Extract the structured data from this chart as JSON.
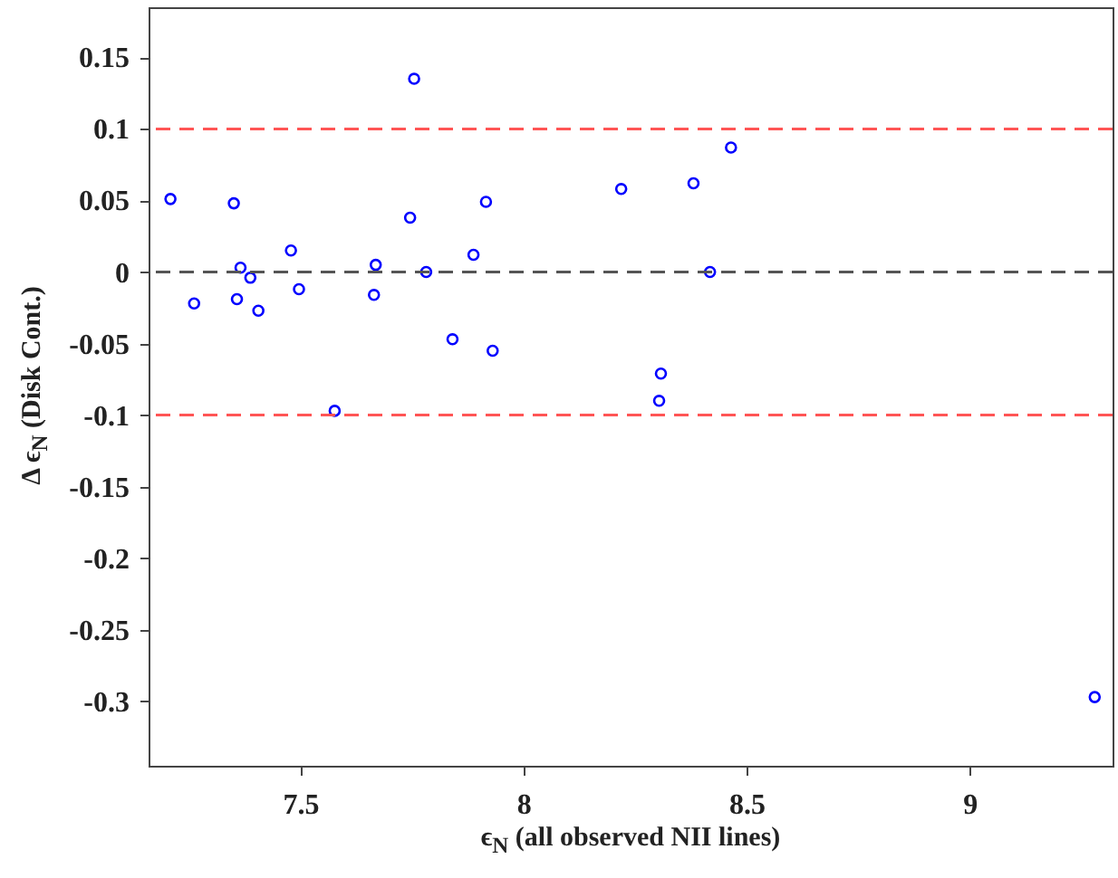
{
  "chart_data": {
    "type": "scatter",
    "xlabel": "ϵ$_{N}$ (all observed NII lines)",
    "ylabel": "Δ ϵ$_{N}$ (Disk Cont.)",
    "xlim": [
      7.16,
      9.32
    ],
    "xticks": [
      7.5,
      8,
      8.5,
      9
    ],
    "ylim": [
      -0.345,
      0.185
    ],
    "yticks": [
      -0.3,
      -0.25,
      -0.2,
      -0.15,
      -0.1,
      -0.05,
      0,
      0.05,
      0.1,
      0.15
    ],
    "grid": false,
    "marker": "circle",
    "series": [
      {
        "color": "#0000ff",
        "x": [
          7.209,
          7.262,
          7.351,
          7.366,
          7.358,
          7.388,
          7.406,
          7.479,
          7.497,
          7.577,
          7.669,
          7.665,
          7.755,
          7.746,
          7.782,
          7.841,
          7.888,
          7.916,
          7.931,
          8.219,
          8.381,
          8.465,
          8.418,
          8.308,
          8.304,
          9.28
        ],
        "values": [
          0.051,
          -0.022,
          0.048,
          0.003,
          -0.019,
          -0.004,
          -0.027,
          0.015,
          -0.012,
          -0.097,
          0.005,
          -0.016,
          0.135,
          0.038,
          0,
          -0.047,
          0.012,
          0.049,
          -0.055,
          0.058,
          0.062,
          0.087,
          0,
          -0.071,
          -0.09,
          -0.297
        ]
      }
    ],
    "ref_lines": [
      {
        "axis": "y",
        "value": 0.1,
        "color": "#ff5555",
        "line_style": "dashed"
      },
      {
        "axis": "y",
        "value": 0,
        "color": "#555555",
        "line_style": "dashed"
      },
      {
        "axis": "y",
        "value": -0.1,
        "color": "#ff5555",
        "line_style": "dashed"
      }
    ]
  }
}
